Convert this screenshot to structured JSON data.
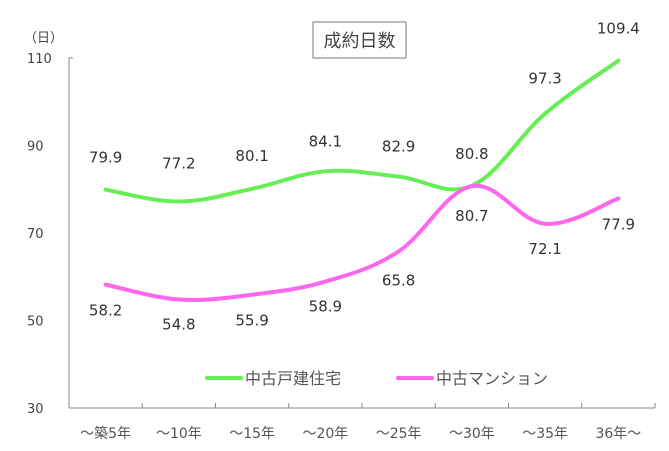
{
  "chart_data": {
    "type": "line",
    "title": "成約日数",
    "ylabel": "（日）",
    "xlabel": "",
    "ylim": [
      30,
      110
    ],
    "yticks": [
      30,
      50,
      70,
      90,
      110
    ],
    "grid": false,
    "legend_position": "bottom-center",
    "categories": [
      "～築5年",
      "～10年",
      "～15年",
      "～20年",
      "～25年",
      "～30年",
      "～35年",
      "36年～"
    ],
    "series": [
      {
        "name": "中古戸建住宅",
        "color": "#66ee55",
        "values": [
          79.9,
          77.2,
          80.1,
          84.1,
          82.9,
          80.8,
          97.3,
          109.4
        ]
      },
      {
        "name": "中古マンション",
        "color": "#ff66ee",
        "values": [
          58.2,
          54.8,
          55.9,
          58.9,
          65.8,
          80.7,
          72.1,
          77.9
        ]
      }
    ]
  }
}
